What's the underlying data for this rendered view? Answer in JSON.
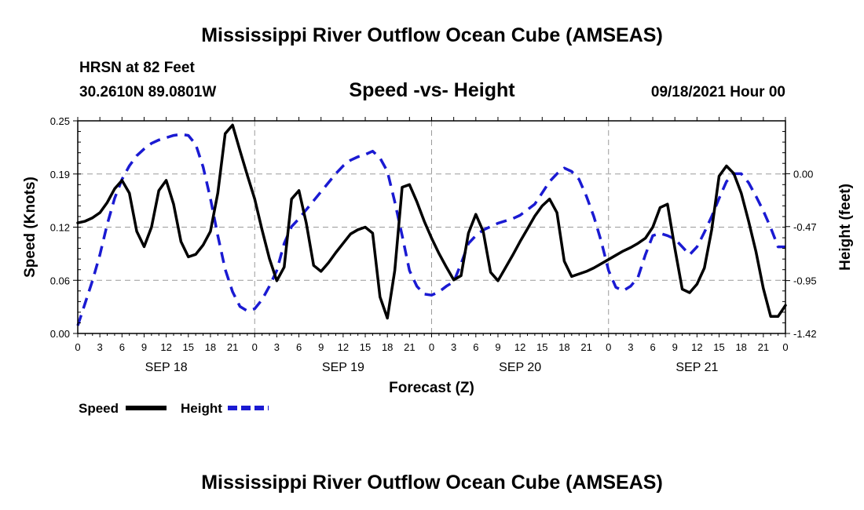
{
  "page": {
    "title_top": "Mississippi River Outflow Ocean Cube (AMSEAS)",
    "title_bottom": "Mississippi River Outflow Ocean Cube (AMSEAS)",
    "station_line1": "HRSN at 82 Feet",
    "station_line2": "30.2610N  89.0801W",
    "subtitle": "Speed -vs- Height",
    "datetime": "09/18/2021 Hour 00"
  },
  "chart_data": {
    "type": "line",
    "title": "Speed -vs- Height",
    "xlabel": "Forecast (Z)",
    "ylabel": "Speed (Knots)",
    "y2label": "Height (feet)",
    "xlim": [
      0,
      96
    ],
    "ylim": [
      0,
      0.25
    ],
    "y2lim": [
      -1.42,
      0.47
    ],
    "grid": true,
    "x_tick_labels": [
      "0",
      "3",
      "6",
      "9",
      "12",
      "15",
      "18",
      "21",
      "0",
      "3",
      "6",
      "9",
      "12",
      "15",
      "18",
      "21",
      "0",
      "3",
      "6",
      "9",
      "12",
      "15",
      "18",
      "21",
      "0",
      "3",
      "6",
      "9",
      "12",
      "15",
      "18",
      "21",
      "0"
    ],
    "date_labels": [
      {
        "hour": 12,
        "label": "SEP 18"
      },
      {
        "hour": 36,
        "label": "SEP 19"
      },
      {
        "hour": 60,
        "label": "SEP 20"
      },
      {
        "hour": 84,
        "label": "SEP 21"
      }
    ],
    "y_ticks": [
      "0.00",
      "0.06",
      "0.12",
      "0.19",
      "0.25"
    ],
    "y_tick_values": [
      0,
      0.0625,
      0.125,
      0.1875,
      0.25
    ],
    "y2_ticks": [
      "-1.42",
      "-0.95",
      "-0.47",
      "0.00"
    ],
    "y2_tick_values": [
      -1.42,
      -0.95,
      -0.47,
      0.0
    ],
    "legend": [
      "Speed",
      "Height"
    ],
    "series": [
      {
        "name": "Speed",
        "axis": "left",
        "color": "#000000",
        "dash": "solid",
        "x": [
          0,
          1,
          2,
          3,
          4,
          5,
          6,
          7,
          8,
          9,
          10,
          11,
          12,
          13,
          14,
          15,
          16,
          17,
          18,
          19,
          20,
          21,
          22,
          23,
          24,
          25,
          26,
          27,
          28,
          29,
          30,
          31,
          32,
          33,
          34,
          35,
          36,
          37,
          38,
          39,
          40,
          41,
          42,
          43,
          44,
          45,
          46,
          47,
          48,
          49,
          50,
          51,
          52,
          53,
          54,
          55,
          56,
          57,
          58,
          59,
          60,
          61,
          62,
          63,
          64,
          65,
          66,
          67,
          68,
          69,
          70,
          71,
          72,
          73,
          74,
          75,
          76,
          77,
          78,
          79,
          80,
          81,
          82,
          83,
          84,
          85,
          86,
          87,
          88,
          89,
          90,
          91,
          92,
          93,
          94,
          95,
          96
        ],
        "values": [
          0.13,
          0.132,
          0.136,
          0.142,
          0.154,
          0.17,
          0.18,
          0.165,
          0.12,
          0.102,
          0.125,
          0.168,
          0.18,
          0.152,
          0.108,
          0.09,
          0.093,
          0.104,
          0.12,
          0.165,
          0.235,
          0.245,
          0.215,
          0.186,
          0.158,
          0.122,
          0.088,
          0.062,
          0.078,
          0.158,
          0.168,
          0.13,
          0.08,
          0.073,
          0.083,
          0.095,
          0.106,
          0.117,
          0.122,
          0.125,
          0.118,
          0.043,
          0.018,
          0.074,
          0.172,
          0.175,
          0.155,
          0.132,
          0.112,
          0.094,
          0.078,
          0.063,
          0.068,
          0.118,
          0.14,
          0.12,
          0.072,
          0.062,
          0.077,
          0.092,
          0.108,
          0.123,
          0.138,
          0.15,
          0.158,
          0.142,
          0.085,
          0.067,
          0.07,
          0.073,
          0.077,
          0.082,
          0.087,
          0.092,
          0.097,
          0.101,
          0.106,
          0.112,
          0.125,
          0.148,
          0.152,
          0.1,
          0.052,
          0.048,
          0.058,
          0.077,
          0.122,
          0.185,
          0.197,
          0.188,
          0.165,
          0.132,
          0.096,
          0.053,
          0.02,
          0.02,
          0.033
        ]
      },
      {
        "name": "Height",
        "axis": "right",
        "color": "#1a1ad2",
        "dash": "dashed",
        "x": [
          0,
          1,
          2,
          3,
          4,
          5,
          6,
          7,
          8,
          9,
          10,
          11,
          12,
          13,
          14,
          15,
          16,
          17,
          18,
          19,
          20,
          21,
          22,
          23,
          24,
          25,
          26,
          27,
          28,
          29,
          30,
          31,
          32,
          33,
          34,
          35,
          36,
          37,
          38,
          39,
          40,
          41,
          42,
          43,
          44,
          45,
          46,
          47,
          48,
          49,
          50,
          51,
          52,
          53,
          54,
          55,
          56,
          57,
          58,
          59,
          60,
          61,
          62,
          63,
          64,
          65,
          66,
          67,
          68,
          69,
          70,
          71,
          72,
          73,
          74,
          75,
          76,
          77,
          78,
          79,
          80,
          81,
          82,
          83,
          84,
          85,
          86,
          87,
          88,
          89,
          90,
          91,
          92,
          93,
          94,
          95,
          96
        ],
        "values": [
          -1.35,
          -1.15,
          -0.95,
          -0.72,
          -0.45,
          -0.22,
          -0.05,
          0.07,
          0.16,
          0.22,
          0.27,
          0.3,
          0.32,
          0.34,
          0.35,
          0.34,
          0.26,
          0.06,
          -0.22,
          -0.55,
          -0.85,
          -1.05,
          -1.18,
          -1.22,
          -1.2,
          -1.12,
          -1.0,
          -0.86,
          -0.62,
          -0.47,
          -0.4,
          -0.32,
          -0.24,
          -0.16,
          -0.08,
          0.0,
          0.07,
          0.12,
          0.15,
          0.17,
          0.2,
          0.14,
          0.02,
          -0.25,
          -0.55,
          -0.86,
          -1.0,
          -1.07,
          -1.08,
          -1.05,
          -1.0,
          -0.96,
          -0.8,
          -0.62,
          -0.55,
          -0.5,
          -0.47,
          -0.44,
          -0.42,
          -0.4,
          -0.37,
          -0.32,
          -0.27,
          -0.17,
          -0.07,
          0.0,
          0.05,
          0.02,
          -0.05,
          -0.2,
          -0.38,
          -0.6,
          -0.86,
          -1.01,
          -1.04,
          -1.0,
          -0.92,
          -0.72,
          -0.55,
          -0.53,
          -0.55,
          -0.58,
          -0.65,
          -0.72,
          -0.65,
          -0.52,
          -0.38,
          -0.22,
          -0.07,
          0.0,
          0.0,
          -0.08,
          -0.2,
          -0.33,
          -0.48,
          -0.65,
          -0.65
        ]
      }
    ]
  }
}
